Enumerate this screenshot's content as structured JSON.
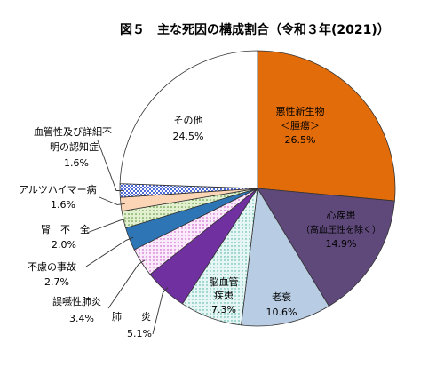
{
  "chart_data": {
    "type": "pie",
    "title": "図５　主な死因の構成割合（令和３年(2021)）",
    "slices": [
      {
        "name": "悪性新生物",
        "sub": "＜腫瘍＞",
        "value": 26.5,
        "value_label": "26.5%",
        "color": "#e36c0a",
        "pattern": "solid"
      },
      {
        "name": "心疾患",
        "sub": "（高血圧性を除く）",
        "value": 14.9,
        "value_label": "14.9%",
        "color": "#5f497a",
        "pattern": "solid"
      },
      {
        "name": "老衰",
        "sub": "",
        "value": 10.6,
        "value_label": "10.6%",
        "color": "#b8cce4",
        "pattern": "solid"
      },
      {
        "name": "脳血管",
        "sub": "疾患",
        "value": 7.3,
        "value_label": "7.3%",
        "color": "#dbf0ee",
        "pattern": "dots-teal"
      },
      {
        "name": "肺　　炎",
        "sub": "",
        "value": 5.1,
        "value_label": "5.1%",
        "color": "#7030a0",
        "pattern": "solid"
      },
      {
        "name": "誤嚥性肺炎",
        "sub": "",
        "value": 3.4,
        "value_label": "3.4%",
        "color": "#f2dcf2",
        "pattern": "dots-pink"
      },
      {
        "name": "不慮の事故",
        "sub": "",
        "value": 2.7,
        "value_label": "2.7%",
        "color": "#2e75b6",
        "pattern": "solid"
      },
      {
        "name": "腎　不　全",
        "sub": "",
        "value": 2.0,
        "value_label": "2.0%",
        "color": "#9bbb59",
        "pattern": "dots-green"
      },
      {
        "name": "アルツハイマー病",
        "sub": "",
        "value": 1.6,
        "value_label": "1.6%",
        "color": "#fbd5b5",
        "pattern": "solid"
      },
      {
        "name": "血管性及び詳細不",
        "sub": "明の認知症",
        "value": 1.6,
        "value_label": "1.6%",
        "color": "#4f6bd8",
        "pattern": "check"
      },
      {
        "name": "その他",
        "sub": "",
        "value": 24.5,
        "value_label": "24.5%",
        "color": "#ffffff",
        "pattern": "solid"
      }
    ],
    "start_angle_deg": 0,
    "direction": "clockwise",
    "legend": "none"
  }
}
